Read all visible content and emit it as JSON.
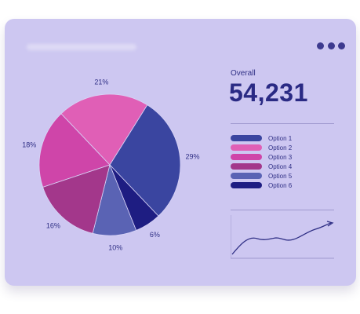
{
  "card": {
    "menu_icon": "more-horizontal-icon"
  },
  "overall": {
    "label": "Overall",
    "value": "54,231"
  },
  "chart_data": {
    "type": "pie",
    "title": "",
    "slices": [
      {
        "label": "Option 1",
        "value": 29,
        "value_label": "29%",
        "color": "#3a45a0"
      },
      {
        "label": "Option 6",
        "value": 6,
        "value_label": "6%",
        "color": "#1e1d82"
      },
      {
        "label": "Option 5",
        "value": 10,
        "value_label": "10%",
        "color": "#5a63b4"
      },
      {
        "label": "Option 4",
        "value": 16,
        "value_label": "16%",
        "color": "#a3378b"
      },
      {
        "label": "Option 3",
        "value": 18,
        "value_label": "18%",
        "color": "#cf45a9"
      },
      {
        "label": "Option 2",
        "value": 21,
        "value_label": "21%",
        "color": "#e05fb6"
      }
    ]
  },
  "legend": [
    {
      "label": "Option 1",
      "color": "#3a45a0"
    },
    {
      "label": "Option 2",
      "color": "#e05fb6"
    },
    {
      "label": "Option 3",
      "color": "#cf45a9"
    },
    {
      "label": "Option 4",
      "color": "#a3378b"
    },
    {
      "label": "Option 5",
      "color": "#5a63b4"
    },
    {
      "label": "Option 6",
      "color": "#1e1d82"
    }
  ],
  "sparkline": {
    "icon": "trend-up-arrow-icon",
    "color": "#2f2f85"
  }
}
